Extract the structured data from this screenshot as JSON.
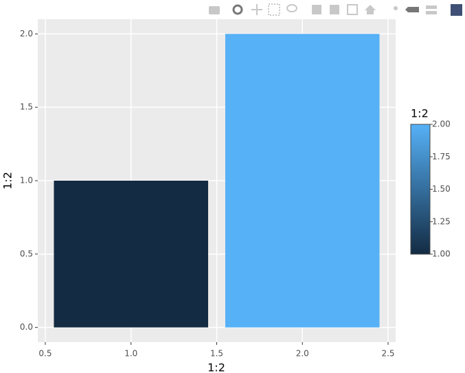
{
  "chart_data": {
    "type": "bar",
    "x": [
      1,
      2
    ],
    "values": [
      1,
      2
    ],
    "colors": [
      "#132B43",
      "#56B1F7"
    ],
    "x_label": "1:2",
    "y_label": "1:2",
    "xlim": [
      0.456,
      2.544
    ],
    "xticks": [
      0.5,
      {
        "value": 1,
        "label": "1.0"
      },
      1.5,
      {
        "value": 2,
        "label": "2.0"
      },
      2.5
    ],
    "ylim": [
      -0.1,
      2.1
    ],
    "yticks": [
      {
        "value": 0,
        "label": "0.0"
      },
      0.5,
      {
        "value": 1,
        "label": "1.0"
      },
      1.5,
      {
        "value": 2,
        "label": "2.0"
      }
    ],
    "grid": true,
    "colorbar": {
      "title": "1:2",
      "lim": [
        1,
        2
      ],
      "colors": [
        "#132B43",
        "#56B1F7"
      ],
      "ticks": [
        {
          "value": 1,
          "label": "1.00"
        },
        {
          "value": 1.25,
          "label": "1.25"
        },
        {
          "value": 1.5,
          "label": "1.50"
        },
        {
          "value": 1.75,
          "label": "1.75"
        },
        {
          "value": 2,
          "label": "2.00"
        }
      ]
    }
  }
}
